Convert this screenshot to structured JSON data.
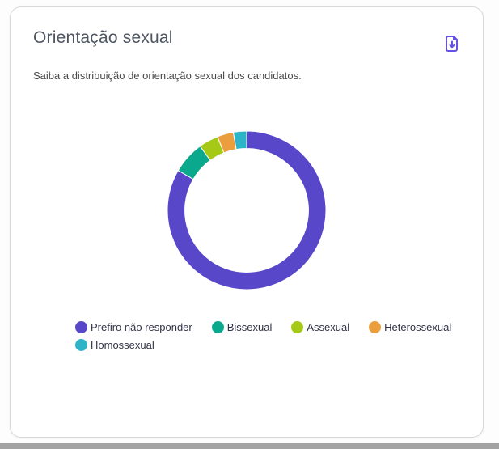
{
  "card": {
    "title": "Orientação sexual",
    "subtitle": "Saiba a distribuição de orientação sexual dos candidatos."
  },
  "icons": {
    "download": "file-download-icon"
  },
  "colors": {
    "accent_purple": "#6352e4",
    "card_border": "#d8d8d8",
    "title_text": "#4e5661",
    "subtitle_text": "#4a4a4a",
    "legend_text": "#333348",
    "bottom_bar": "#a3a3a3"
  },
  "chart_data": {
    "type": "pie",
    "donut": true,
    "title": "Orientação sexual",
    "categories": [
      "Prefiro não responder",
      "Bissexual",
      "Assexual",
      "Heterossexual",
      "Homossexual"
    ],
    "values": [
      83.4,
      6.6,
      4.0,
      3.3,
      2.7
    ],
    "unit": "percent",
    "colors": [
      "#5847c9",
      "#0aa88c",
      "#a5c916",
      "#eb9e3e",
      "#2db4c8"
    ],
    "legend_position": "bottom",
    "start_angle_deg": 0,
    "direction": "clockwise",
    "inner_radius_ratio": 0.78,
    "segment_gap_stroke": "#ffffff"
  }
}
